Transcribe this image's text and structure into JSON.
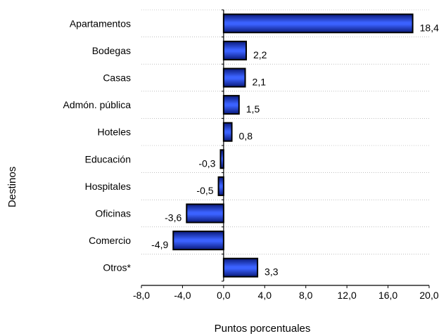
{
  "chart_data": {
    "type": "bar",
    "orientation": "horizontal",
    "categories": [
      "Apartamentos",
      "Bodegas",
      "Casas",
      "Admón. pública",
      "Hoteles",
      "Educación",
      "Hospitales",
      "Oficinas",
      "Comercio",
      "Otros*"
    ],
    "values": [
      18.4,
      2.2,
      2.1,
      1.5,
      0.8,
      -0.3,
      -0.5,
      -3.6,
      -4.9,
      3.3
    ],
    "value_labels": [
      "18,4",
      "2,2",
      "2,1",
      "1,5",
      "0,8",
      "-0,3",
      "-0,5",
      "-3,6",
      "-4,9",
      "3,3"
    ],
    "xlabel": "Puntos porcentuales",
    "ylabel": "Destinos",
    "xlim": [
      -8,
      20
    ],
    "xticks": [
      -8,
      -4,
      0,
      4,
      8,
      12,
      16,
      20
    ],
    "xtick_labels": [
      "-8,0",
      "-4,0",
      "0,0",
      "4,0",
      "8,0",
      "12,0",
      "16,0",
      "20,0"
    ],
    "grid": "horizontal dotted separators",
    "colors": {
      "bar": "#1f3fcf",
      "bar_dark": "#0a1a7a",
      "outline": "#000000"
    }
  }
}
